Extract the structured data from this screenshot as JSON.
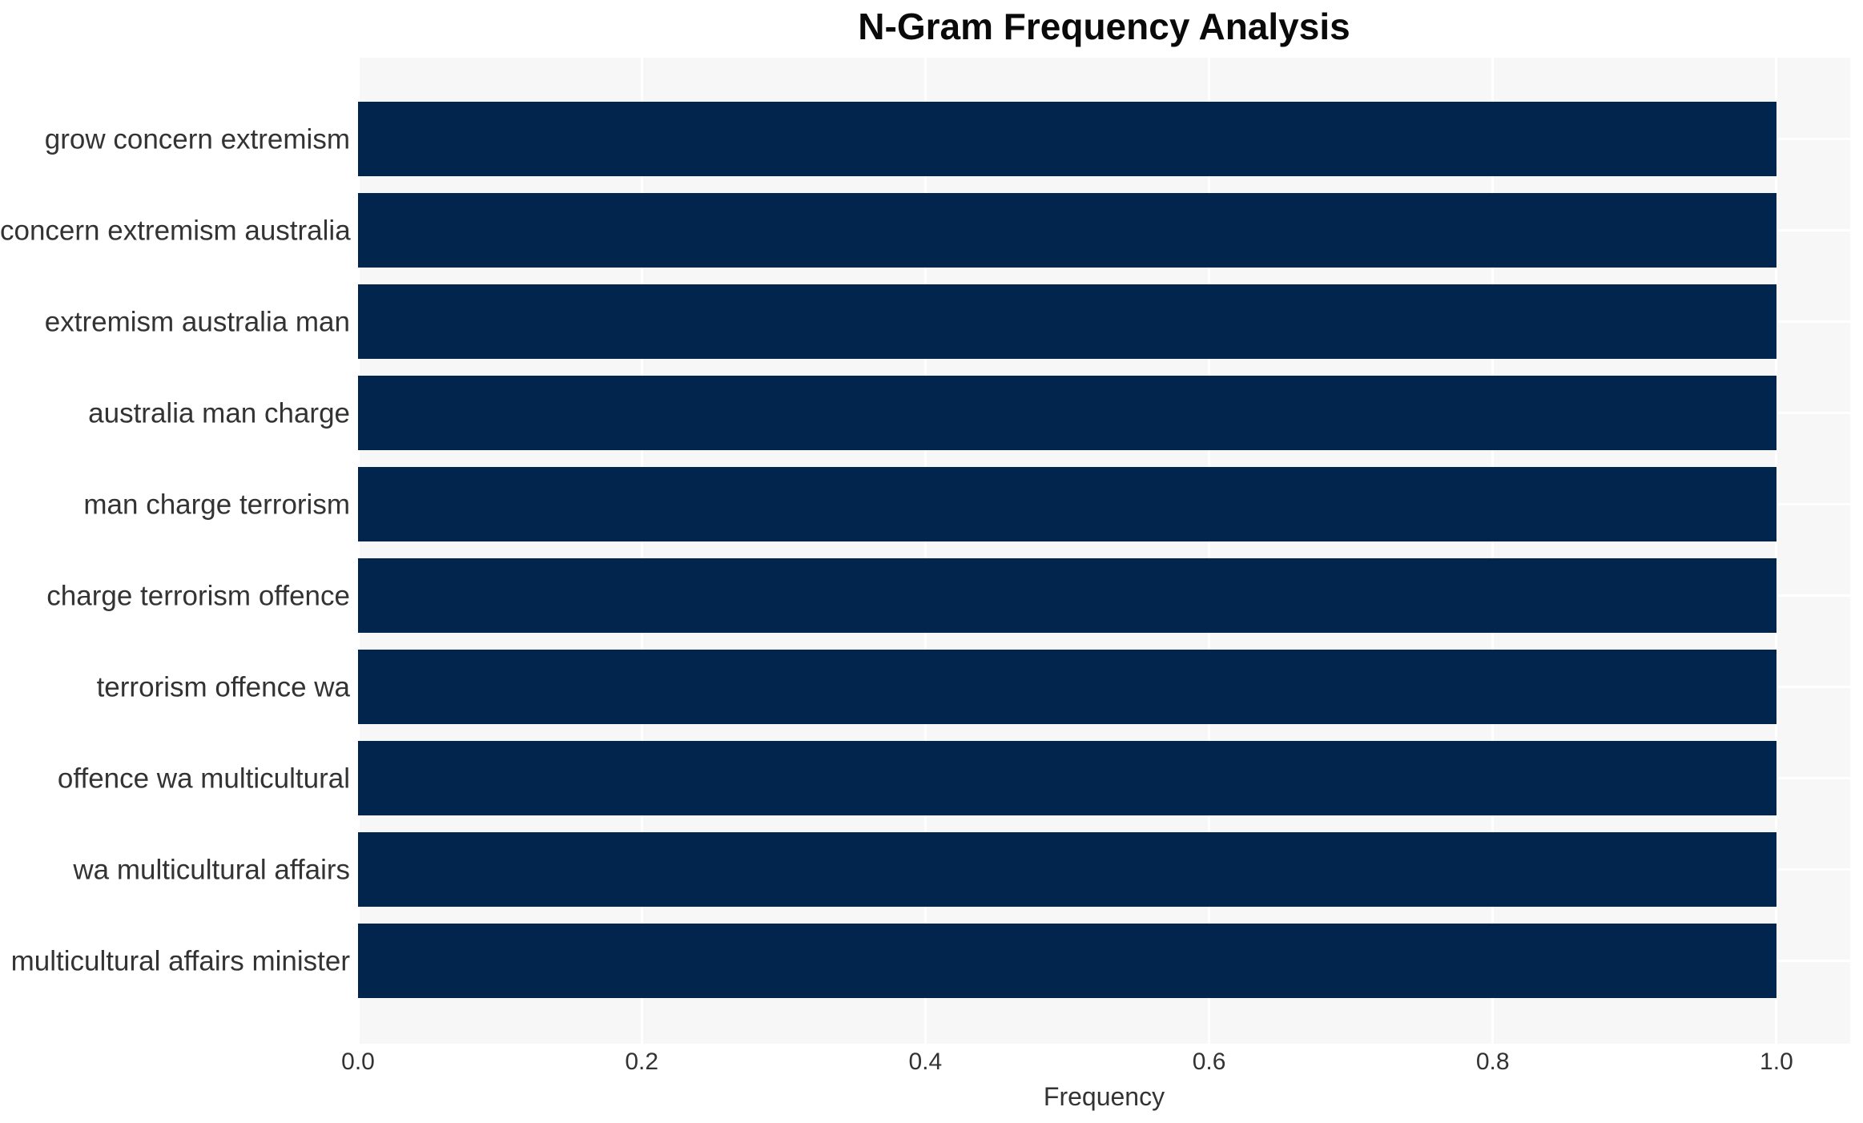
{
  "chart_data": {
    "type": "bar",
    "orientation": "horizontal",
    "title": "N-Gram Frequency Analysis",
    "xlabel": "Frequency",
    "ylabel": "",
    "categories": [
      "grow concern extremism",
      "concern extremism australia",
      "extremism australia man",
      "australia man charge",
      "man charge terrorism",
      "charge terrorism offence",
      "terrorism offence wa",
      "offence wa multicultural",
      "wa multicultural affairs",
      "multicultural affairs minister"
    ],
    "values": [
      1.0,
      1.0,
      1.0,
      1.0,
      1.0,
      1.0,
      1.0,
      1.0,
      1.0,
      1.0
    ],
    "xticks": [
      0.0,
      0.2,
      0.4,
      0.6,
      0.8,
      1.0
    ],
    "xtick_labels": [
      "0.0",
      "0.2",
      "0.4",
      "0.6",
      "0.8",
      "1.0"
    ],
    "xlim": [
      0,
      1.052
    ],
    "grid": true,
    "legend": "none",
    "bar_color": "#02254d",
    "plot_bg": "#f7f7f8"
  }
}
